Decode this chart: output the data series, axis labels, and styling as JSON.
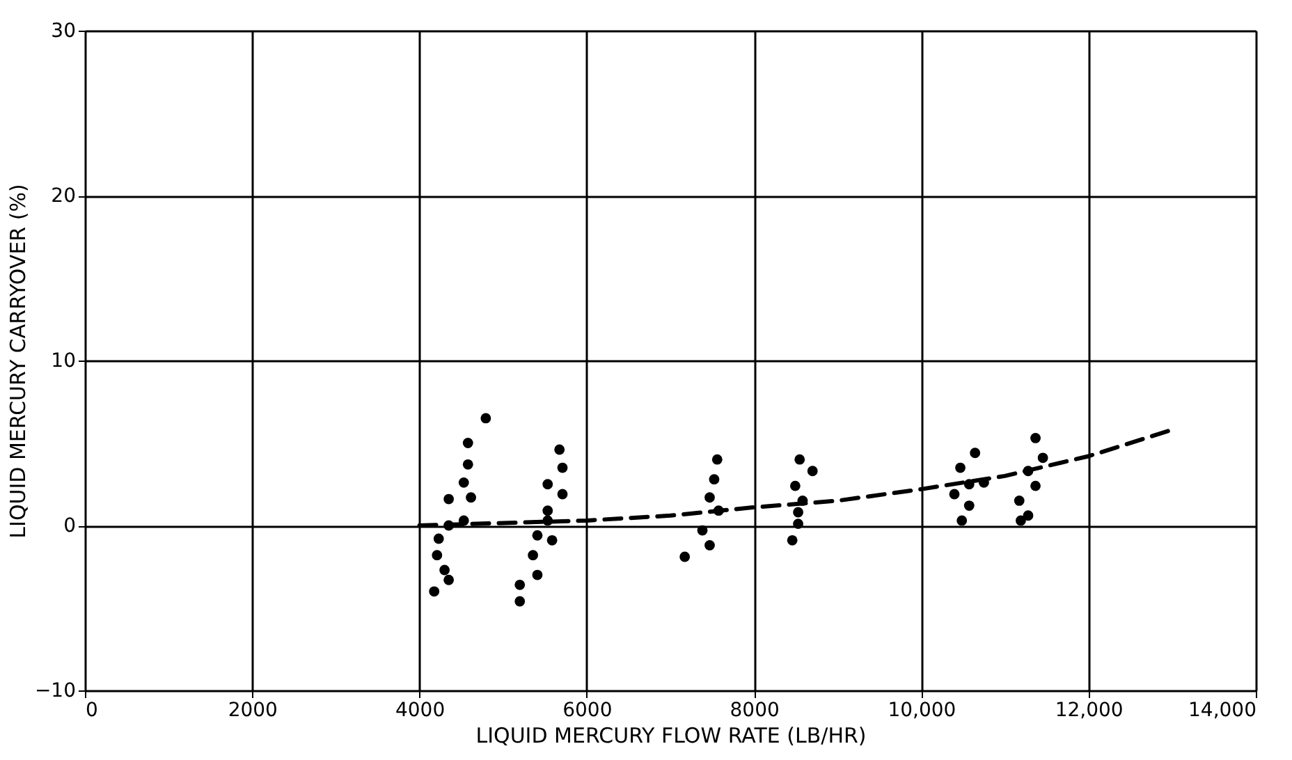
{
  "chart_data": {
    "type": "scatter",
    "xlabel": "LIQUID MERCURY FLOW RATE (LB/HR)",
    "ylabel": "LIQUID MERCURY CARRYOVER (%)",
    "xlim": [
      0,
      14000
    ],
    "ylim": [
      -10,
      30
    ],
    "xticks": [
      0,
      2000,
      4000,
      6000,
      8000,
      {
        "value": 10000,
        "label": "10,000"
      },
      {
        "value": 12000,
        "label": "12,000"
      },
      {
        "value": 14000,
        "label": "14,000"
      }
    ],
    "yticks": [
      -10,
      0,
      10,
      20,
      30
    ],
    "grid": true,
    "marker": "circle",
    "series": [
      {
        "color": "#000000",
        "x": [
          4793,
          4580,
          4580,
          4530,
          4616,
          4350,
          4530,
          4350,
          4230,
          4210,
          4300,
          4176,
          4350,
          5674,
          5710,
          5533,
          5710,
          5533,
          5533,
          5410,
          5586,
          5357,
          5410,
          5200,
          5200,
          7560,
          7524,
          7470,
          7577,
          7383,
          7470,
          7172
        ],
        "values": [
          6.5,
          5.0,
          3.7,
          2.6,
          1.7,
          1.6,
          0.3,
          0.0,
          -0.8,
          -1.8,
          -2.7,
          -4.0,
          -3.3,
          4.6,
          3.5,
          2.5,
          1.9,
          0.9,
          0.3,
          -0.6,
          -0.9,
          -1.8,
          -3.0,
          -3.6,
          -4.6,
          4.0,
          2.8,
          1.7,
          0.9,
          -0.3,
          -1.2,
          -1.9
        ]
      },
      {
        "color": "#000000",
        "x": [
          8546,
          8700,
          8493,
          8581,
          8528,
          8528,
          8458,
          10643,
          10467,
          10573,
          10396,
          10573,
          10485,
          10749,
          11366,
          11454,
          11278,
          11366,
          11172,
          11278,
          11190
        ],
        "values": [
          4.0,
          3.3,
          2.4,
          1.5,
          0.8,
          0.1,
          -0.9,
          4.4,
          3.5,
          2.5,
          1.9,
          1.2,
          0.3,
          2.6,
          5.3,
          4.1,
          3.3,
          2.4,
          1.5,
          0.6,
          0.3
        ]
      },
      {
        "type": "line",
        "color": "#000000",
        "line_style": "dashed",
        "marker": "none",
        "x": [
          4000,
          6000,
          7000,
          8000,
          9000,
          10000,
          11000,
          12000,
          13000
        ],
        "values": [
          0.0,
          0.3,
          0.6,
          1.1,
          1.5,
          2.2,
          3.0,
          4.2,
          5.8
        ]
      }
    ]
  }
}
